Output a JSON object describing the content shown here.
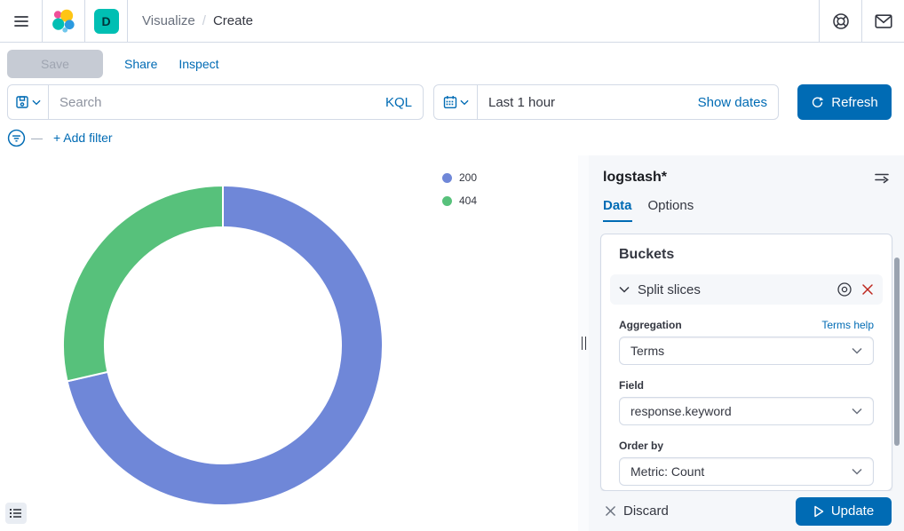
{
  "header": {
    "breadcrumbs": [
      {
        "label": "Visualize"
      },
      {
        "label": "Create"
      }
    ],
    "space_badge": "D",
    "icons": {
      "left": [
        "menu-icon",
        "elastic-logo"
      ],
      "right": [
        "help-icon",
        "newsfeed-icon"
      ]
    }
  },
  "toolbar": {
    "save_label": "Save",
    "share_label": "Share",
    "inspect_label": "Inspect"
  },
  "query_bar": {
    "search_placeholder": "Search",
    "language": "KQL",
    "time_range": "Last 1 hour",
    "show_dates_label": "Show dates",
    "refresh_label": "Refresh"
  },
  "filter_bar": {
    "add_filter_label": "+ Add filter"
  },
  "chart_data": {
    "type": "pie",
    "donut": true,
    "legend_position": "top-right",
    "value_unit": "percent",
    "slices": [
      {
        "label": "200",
        "value": 71.4,
        "color": "#6F87D8"
      },
      {
        "label": "404",
        "value": 28.6,
        "color": "#57C17B"
      }
    ]
  },
  "panel": {
    "title": "logstash*",
    "tabs": [
      {
        "label": "Data"
      },
      {
        "label": "Options"
      }
    ],
    "buckets_title": "Buckets",
    "accordion_label": "Split slices",
    "aggregation": {
      "label": "Aggregation",
      "help": "Terms help",
      "value": "Terms"
    },
    "field": {
      "label": "Field",
      "value": "response.keyword"
    },
    "order_by": {
      "label": "Order by",
      "value": "Metric: Count"
    },
    "actions": {
      "discard_label": "Discard",
      "update_label": "Update"
    }
  },
  "colors": {
    "primary": "#006BB4",
    "danger": "#BD271E",
    "space_badge_bg": "#00BFB3",
    "panel_bg": "#F5F7FA",
    "border": "#D3DAE6",
    "slice_200": "#6F87D8",
    "slice_404": "#57C17B"
  }
}
